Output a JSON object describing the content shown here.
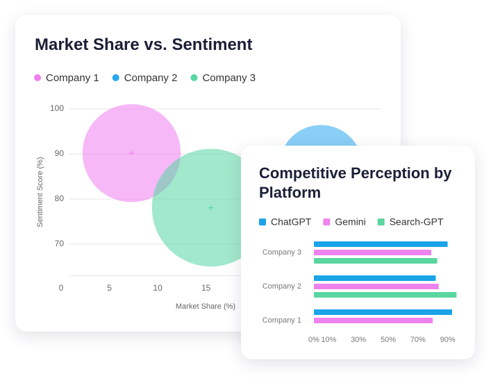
{
  "chart_data": [
    {
      "type": "scatter",
      "title": "Market Share vs. Sentiment",
      "x_label": "Market Share (%)",
      "y_label": "Sentiment Score (%)",
      "series": [
        {
          "name": "Company 1",
          "color": "#f07ef0",
          "x": [
            7.3
          ],
          "values": [
            90.2
          ],
          "sizes": [
            50
          ]
        },
        {
          "name": "Company 2",
          "color": "#28a8ee",
          "x": [
            26.9
          ],
          "values": [
            87.2
          ],
          "sizes": [
            36
          ]
        },
        {
          "name": "Company 3",
          "color": "#55d6a2",
          "x": [
            15.5
          ],
          "values": [
            78.1
          ],
          "sizes": [
            72
          ]
        }
      ],
      "xlim": [
        0,
        33
      ],
      "xticks": [
        0,
        5,
        10,
        15
      ],
      "ylim": [
        63,
        100
      ],
      "yticks": [
        70,
        80,
        90,
        100
      ],
      "grid": true
    },
    {
      "type": "bar",
      "orientation": "horizontal",
      "title": "Competitive Perception by Platform",
      "categories": [
        "Company 1",
        "Company 2",
        "Company 3"
      ],
      "series": [
        {
          "name": "ChatGPT",
          "color": "#1aa3e8",
          "values": [
            93,
            82,
            90
          ]
        },
        {
          "name": "Gemini",
          "color": "#ee82ee",
          "values": [
            80,
            84,
            79
          ]
        },
        {
          "name": "Search-GPT",
          "color": "#5ad6a0",
          "values": [
            null,
            96,
            83
          ]
        }
      ],
      "xlim": [
        0,
        100
      ],
      "xticks": [
        {
          "value": 0,
          "label": "0%"
        },
        {
          "value": 10,
          "label": "10%"
        },
        {
          "value": 30,
          "label": "30%"
        },
        {
          "value": 50,
          "label": "50%"
        },
        {
          "value": 70,
          "label": "70%"
        },
        {
          "value": 90,
          "label": "90%"
        }
      ]
    }
  ]
}
